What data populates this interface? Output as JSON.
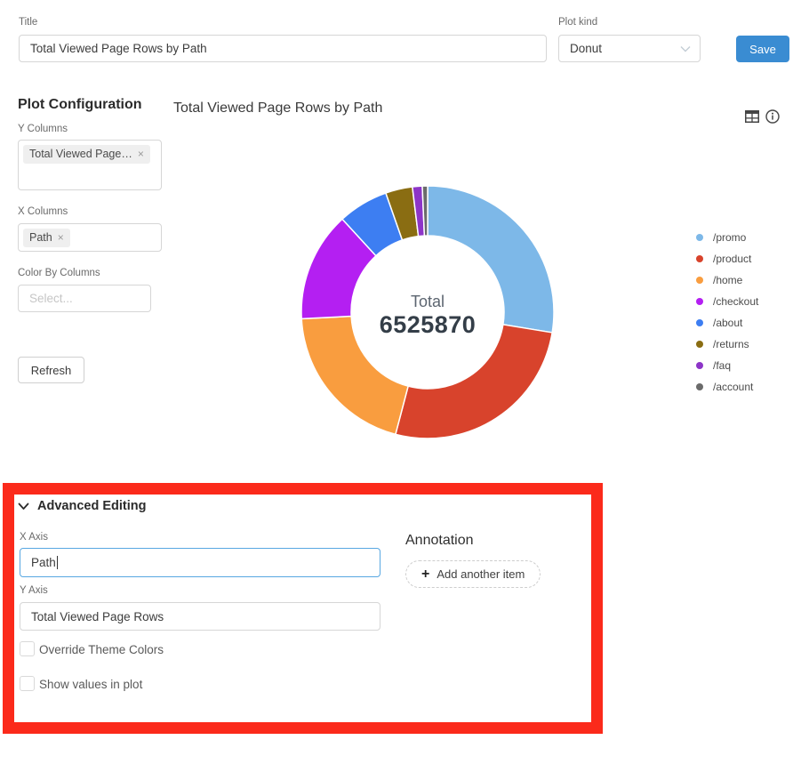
{
  "header": {
    "title_label": "Title",
    "title_value": "Total Viewed Page Rows by Path",
    "plot_kind_label": "Plot kind",
    "plot_kind_value": "Donut",
    "save_label": "Save"
  },
  "sidebar": {
    "heading": "Plot Configuration",
    "y_columns_label": "Y Columns",
    "y_columns_tag": "Total Viewed Page…",
    "x_columns_label": "X Columns",
    "x_columns_tag": "Path",
    "color_by_label": "Color By Columns",
    "color_by_placeholder": "Select...",
    "refresh_label": "Refresh"
  },
  "chart": {
    "title": "Total Viewed Page Rows by Path",
    "center_label": "Total",
    "center_value": "6525870",
    "toolbar_icons": [
      "table-icon",
      "info-icon"
    ]
  },
  "chart_data": {
    "type": "pie",
    "subtype": "donut",
    "title": "Total Viewed Page Rows by Path",
    "total_label": "Total",
    "total": 6525870,
    "start_angle_deg": 0,
    "direction": "clockwise",
    "legend_position": "right",
    "series": [
      {
        "name": "/promo",
        "value": 1800000,
        "color": "#7db8e8"
      },
      {
        "name": "/product",
        "value": 1730000,
        "color": "#d8432c"
      },
      {
        "name": "/home",
        "value": 1310000,
        "color": "#f99d3f"
      },
      {
        "name": "/checkout",
        "value": 915000,
        "color": "#b41ff2"
      },
      {
        "name": "/about",
        "value": 420000,
        "color": "#3d7ef2"
      },
      {
        "name": "/returns",
        "value": 225000,
        "color": "#8a6d12"
      },
      {
        "name": "/faq",
        "value": 82000,
        "color": "#8d35c8"
      },
      {
        "name": "/account",
        "value": 43870,
        "color": "#6b6b6b"
      }
    ]
  },
  "advanced": {
    "heading": "Advanced Editing",
    "x_axis_label": "X Axis",
    "x_axis_value": "Path",
    "y_axis_label": "Y Axis",
    "y_axis_value": "Total Viewed Page Rows",
    "override_label": "Override Theme Colors",
    "override_checked": false,
    "show_values_label": "Show values in plot",
    "show_values_checked": false
  },
  "annotation": {
    "heading": "Annotation",
    "add_label": "Add another item"
  },
  "colors": {
    "highlight_red": "#fb2a1b",
    "save_blue": "#3a8cd2",
    "focus_border": "#58a7e2"
  }
}
